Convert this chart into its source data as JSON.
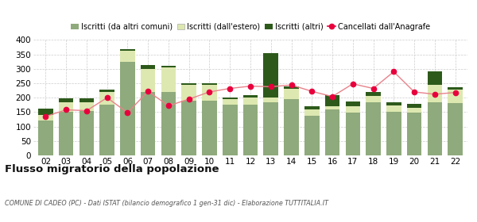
{
  "years": [
    "02",
    "03",
    "04",
    "05",
    "06",
    "07",
    "08",
    "09",
    "10",
    "11",
    "12",
    "13",
    "14",
    "15",
    "16",
    "17",
    "18",
    "19",
    "20",
    "21",
    "22"
  ],
  "iscritti_altri_comuni": [
    120,
    150,
    155,
    175,
    325,
    220,
    220,
    190,
    190,
    175,
    175,
    185,
    195,
    138,
    160,
    148,
    185,
    150,
    148,
    185,
    180
  ],
  "iscritti_estero": [
    20,
    35,
    30,
    45,
    38,
    80,
    85,
    55,
    55,
    20,
    25,
    15,
    35,
    22,
    10,
    22,
    22,
    22,
    18,
    60,
    48
  ],
  "iscritti_altri": [
    22,
    12,
    12,
    8,
    5,
    12,
    6,
    6,
    6,
    6,
    8,
    155,
    8,
    10,
    38,
    18,
    12,
    12,
    12,
    45,
    8
  ],
  "cancellati": [
    135,
    158,
    155,
    200,
    148,
    222,
    172,
    195,
    220,
    232,
    240,
    238,
    244,
    222,
    204,
    248,
    232,
    290,
    220,
    212,
    218
  ],
  "color_comuni": "#8faa7c",
  "color_estero": "#dde8b0",
  "color_altri": "#2d5a1b",
  "color_cancellati": "#e8003d",
  "color_line": "#e8828a",
  "title": "Flusso migratorio della popolazione",
  "subtitle": "COMUNE DI CADEO (PC) - Dati ISTAT (bilancio demografico 1 gen-31 dic) - Elaborazione TUTTITALIA.IT",
  "legend_labels": [
    "Iscritti (da altri comuni)",
    "Iscritti (dall'estero)",
    "Iscritti (altri)",
    "Cancellati dall'Anagrafe"
  ],
  "ylim": [
    0,
    400
  ],
  "yticks": [
    0,
    50,
    100,
    150,
    200,
    250,
    300,
    350,
    400
  ],
  "bg_color": "#ffffff"
}
